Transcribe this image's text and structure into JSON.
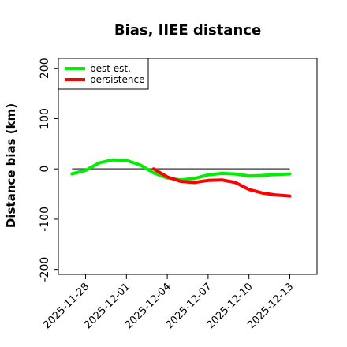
{
  "chart_data": {
    "type": "line",
    "title": "Bias, IIEE distance",
    "xlabel": "",
    "ylabel": "Distance bias (km)",
    "xlim": [
      "2025-11-26",
      "2025-12-15"
    ],
    "ylim": [
      -210,
      220
    ],
    "yticks": [
      -200,
      -100,
      0,
      100,
      200
    ],
    "xticks": [
      "2025-11-28",
      "2025-12-01",
      "2025-12-04",
      "2025-12-07",
      "2025-12-10",
      "2025-12-13"
    ],
    "legend_position": "top-left",
    "reference_line": 0,
    "reference_color": "#555555",
    "series": [
      {
        "name": "best est.",
        "color": "#00ee00",
        "x": [
          "2025-11-27",
          "2025-11-28",
          "2025-11-29",
          "2025-11-30",
          "2025-12-01",
          "2025-12-02",
          "2025-12-03",
          "2025-12-04",
          "2025-12-05",
          "2025-12-06",
          "2025-12-07",
          "2025-12-08",
          "2025-12-09",
          "2025-12-10",
          "2025-12-11",
          "2025-12-12",
          "2025-12-13"
        ],
        "values": [
          -10,
          -3,
          12,
          18,
          17,
          8,
          -8,
          -18,
          -22,
          -19,
          -12,
          -9,
          -10,
          -14,
          -13,
          -11,
          -10
        ]
      },
      {
        "name": "persistence",
        "color": "#ff0000",
        "x": [
          "2025-12-03",
          "2025-12-04",
          "2025-12-05",
          "2025-12-06",
          "2025-12-07",
          "2025-12-08",
          "2025-12-09",
          "2025-12-10",
          "2025-12-11",
          "2025-12-12",
          "2025-12-13"
        ],
        "values": [
          0,
          -16,
          -25,
          -27,
          -23,
          -22,
          -27,
          -41,
          -48,
          -52,
          -54
        ]
      }
    ]
  }
}
